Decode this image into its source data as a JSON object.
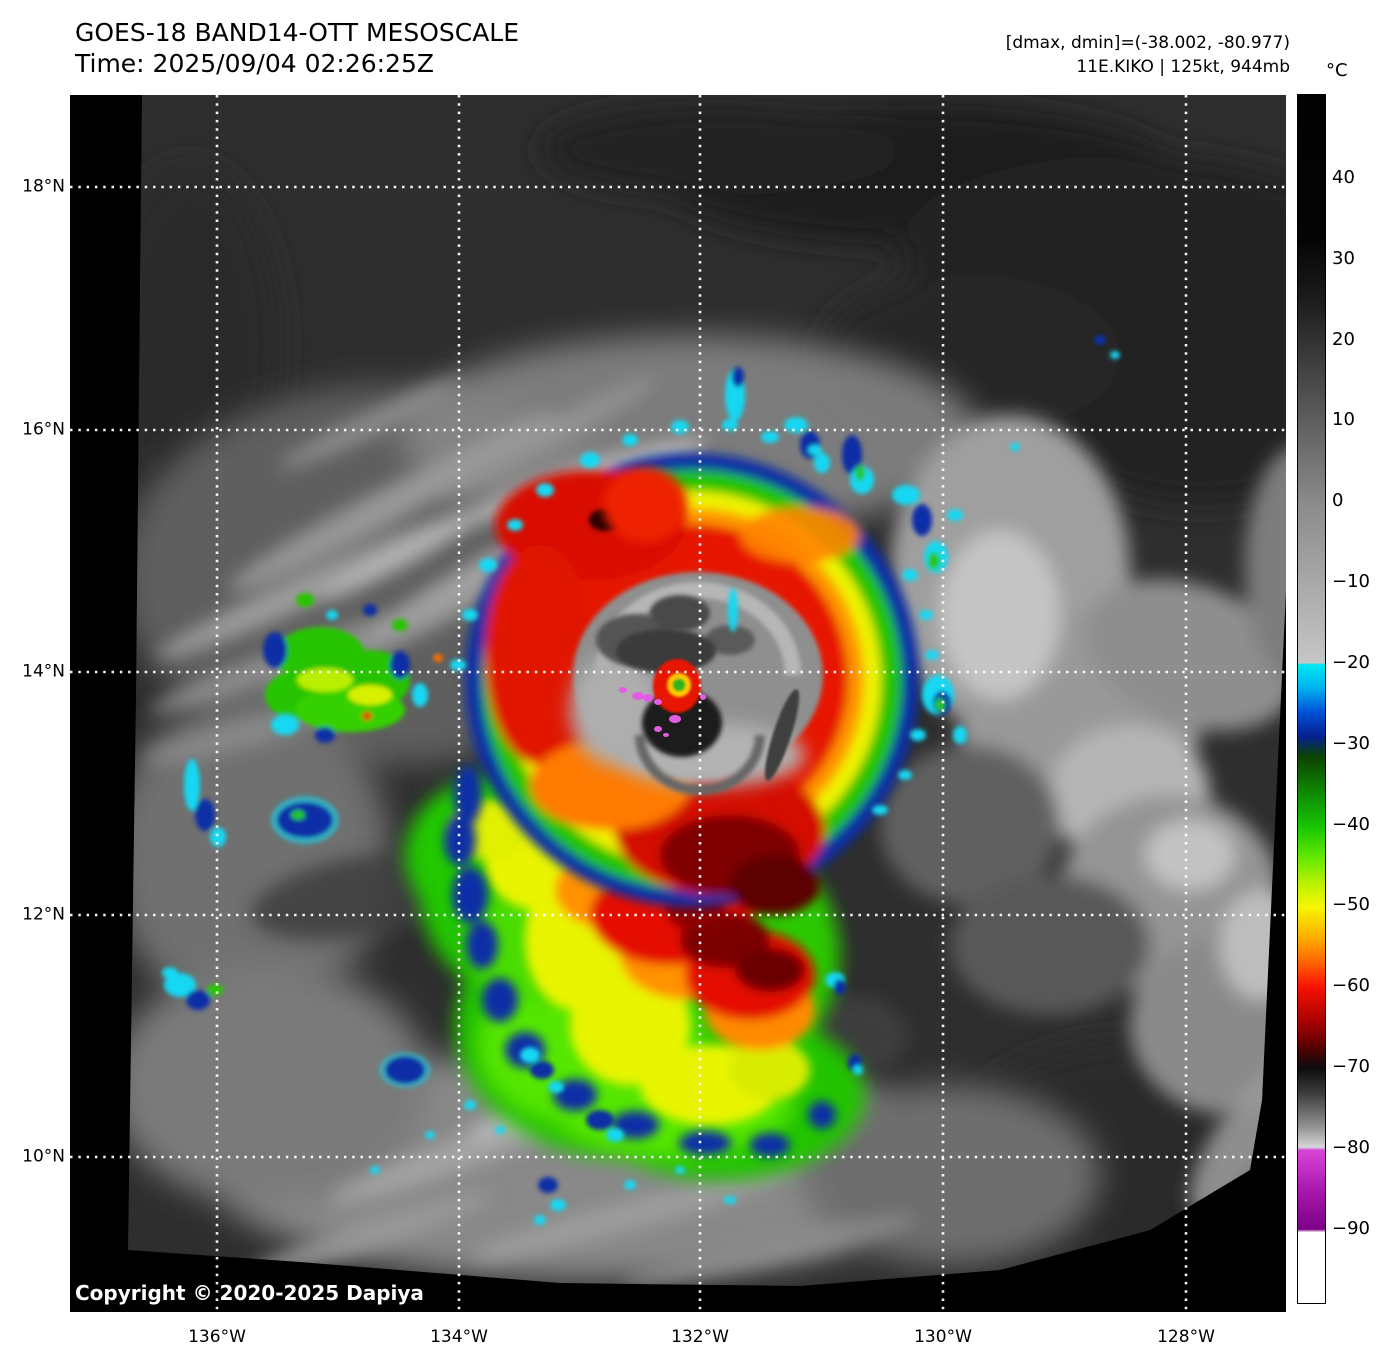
{
  "header": {
    "title_line1": "GOES-18 BAND14-OTT MESOSCALE",
    "title_line2": "Time: 2025/09/04 02:26:25Z",
    "info_line1": "[dmax, dmin]=(-38.002, -80.977)",
    "info_line2": "11E.KIKO | 125kt, 944mb",
    "unit_label": "°C"
  },
  "map": {
    "copyright": "Copyright © 2020-2025 Dapiya",
    "lat_labels": [
      "18°N",
      "16°N",
      "14°N",
      "12°N",
      "10°N"
    ],
    "lon_labels": [
      "136°W",
      "134°W",
      "132°W",
      "130°W",
      "128°W"
    ]
  },
  "colorbar": {
    "tick_labels": [
      "40",
      "30",
      "20",
      "10",
      "0",
      "−10",
      "−20",
      "−30",
      "−40",
      "−50",
      "−60",
      "−70",
      "−80",
      "−90"
    ]
  },
  "colors": {
    "coldest_magenta": "#d844d8",
    "very_cold_black": "#0c0c0c",
    "cold_red": "#f61000",
    "cold_yellow": "#f6f600",
    "cold_green": "#16c400",
    "cold_navy": "#04218e",
    "cold_cyan": "#00e8f2",
    "warm_gray": "#8a8a8a",
    "grid_white": "#ffffff"
  }
}
